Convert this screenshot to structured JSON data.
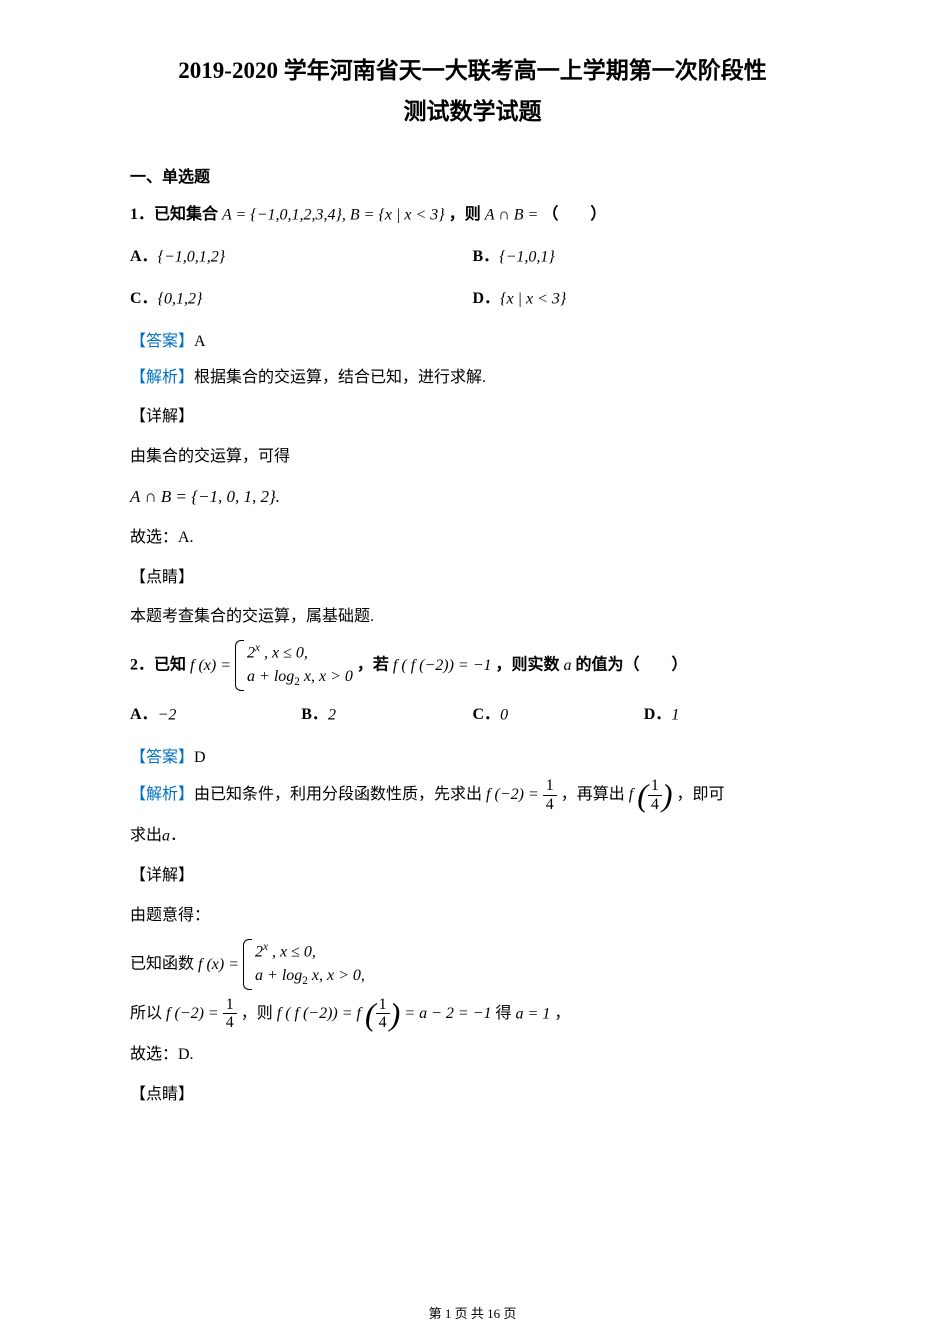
{
  "title_line1": "2019-2020 学年河南省天一大联考高一上学期第一次阶段性",
  "title_line2": "测试数学试题",
  "section1": "一、单选题",
  "q1": {
    "prefix": "1．已知集合",
    "set_expr": "A = {−1,0,1,2,3,4}, B = {x | x < 3}",
    "mid": "，则",
    "tail": "A ∩ B = （　　）",
    "optA_pre": "A．",
    "optA": "{−1,0,1,2}",
    "optB_pre": "B．",
    "optB": "{−1,0,1}",
    "optC_pre": "C．",
    "optC": "{0,1,2}",
    "optD_pre": "D．",
    "optD": "{x | x < 3}",
    "ans_label": "【答案】",
    "ans": "A",
    "ana_label": "【解析】",
    "ana_text": "根据集合的交运算，结合已知，进行求解.",
    "detail_label": "【详解】",
    "detail1": "由集合的交运算，可得",
    "detail2": "A ∩ B = {−1, 0, 1, 2}.",
    "detail3": "故选：A.",
    "ps_label": "【点睛】",
    "ps_text": "本题考查集合的交运算，属基础题."
  },
  "q2": {
    "prefix": "2．已知",
    "fx": "f (x) =",
    "piece1": "2ˣ , x ≤ 0,",
    "piece2": "a + log₂ x, x > 0",
    "mid1": "，若",
    "cond": "f ( f (−2)) = −1",
    "mid2": "，则实数",
    "mid3": "a",
    "mid4": "的值为（　　）",
    "optA": "A．−2",
    "optB": "B．2",
    "optC": "C．0",
    "optD": "D．1",
    "ans_label": "【答案】",
    "ans": "D",
    "ana_label": "【解析】",
    "ana_text1": "由已知条件，利用分段函数性质，先求出",
    "ana_expr1_pre": "f (−2) =",
    "ana_frac_num": "1",
    "ana_frac_den": "4",
    "ana_text2": "，再算出",
    "ana_expr2_pre": "f",
    "ana_text3": "，即可",
    "ana_text4": "求出",
    "ana_text4_a": "a",
    "ana_text4_end": "．",
    "detail_label": "【详解】",
    "detail1": "由题意得：",
    "detail2_pre": "已知函数",
    "detail2_fx": "f (x) =",
    "detail2_p1": "2ˣ , x ≤ 0,",
    "detail2_p2": "a + log₂ x, x > 0,",
    "detail3_pre": "所以",
    "detail3_a": "f (−2) =",
    "detail3_mid": "，则",
    "detail3_b": "f ( f (−2)) = f",
    "detail3_c": "= a − 2 = −1",
    "detail3_d": "得",
    "detail3_e": "a = 1",
    "detail3_end": "，",
    "detail4": "故选：D.",
    "ps_label": "【点睛】"
  },
  "footer": "第 1 页 共 16 页",
  "colors": {
    "text": "#000000",
    "accent": "#0070c0",
    "background": "#ffffff"
  },
  "fontsize_body": 16,
  "fontsize_title": 23,
  "fontsize_footer": 13
}
